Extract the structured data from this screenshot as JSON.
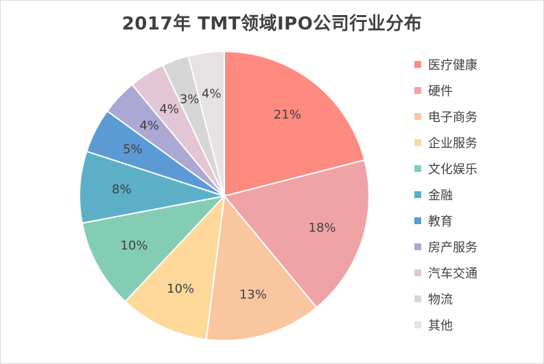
{
  "chart_data": {
    "type": "pie",
    "title": "2017年 TMT领域IPO公司行业分布",
    "legend_position": "right",
    "slices": [
      {
        "label": "医疗健康",
        "value": 21,
        "value_label": "21%",
        "color": "#FF8A80"
      },
      {
        "label": "硬件",
        "value": 18,
        "value_label": "18%",
        "color": "#F0A3A6"
      },
      {
        "label": "电子商务",
        "value": 13,
        "value_label": "13%",
        "color": "#FAC6A0"
      },
      {
        "label": "企业服务",
        "value": 10,
        "value_label": "10%",
        "color": "#FFD99A"
      },
      {
        "label": "文化娱乐",
        "value": 10,
        "value_label": "10%",
        "color": "#84CDB5"
      },
      {
        "label": "金融",
        "value": 8,
        "value_label": "8%",
        "color": "#5BB0C8"
      },
      {
        "label": "教育",
        "value": 5,
        "value_label": "5%",
        "color": "#5B9BD5"
      },
      {
        "label": "房产服务",
        "value": 4,
        "value_label": "4%",
        "color": "#ABA8D3"
      },
      {
        "label": "汽车交通",
        "value": 4,
        "value_label": "4%",
        "color": "#E3C6D6"
      },
      {
        "label": "物流",
        "value": 3,
        "value_label": "3%",
        "color": "#D6D6D6"
      },
      {
        "label": "其他",
        "value": 4,
        "value_label": "4%",
        "color": "#E6E2E4"
      }
    ]
  }
}
